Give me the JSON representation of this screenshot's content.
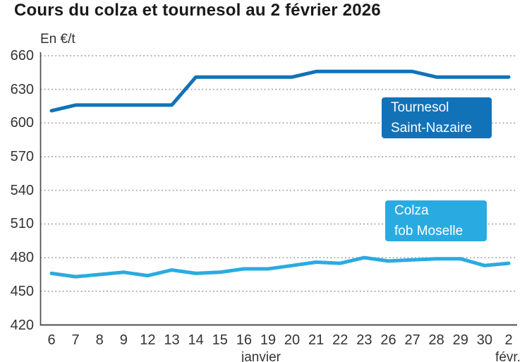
{
  "title": "Cours du colza et tournesol au 2 février 2026",
  "unit_label": "En €/t",
  "chart_data": {
    "type": "line",
    "title": "Cours du colza et tournesol au 2 février 2026",
    "ylabel": "En €/t",
    "xlabel": "",
    "ylim": [
      420,
      660
    ],
    "yticks": [
      420,
      450,
      480,
      510,
      540,
      570,
      600,
      630,
      660
    ],
    "grid": "dotted horizontal gridlines, solid left and bottom axes",
    "legend_position": "inline boxed labels inside plot area",
    "categories": [
      "6",
      "7",
      "8",
      "9",
      "12",
      "13",
      "14",
      "15",
      "16",
      "19",
      "20",
      "21",
      "22",
      "23",
      "26",
      "27",
      "28",
      "29",
      "30",
      "2"
    ],
    "month_labels": [
      {
        "label": "janvier"
      },
      {
        "label": "févr."
      }
    ],
    "series": [
      {
        "name": "Tournesol Saint-Nazaire",
        "label_lines": [
          "Tournesol",
          "Saint-Nazaire"
        ],
        "color": "#1272b8",
        "values": [
          611,
          616,
          616,
          616,
          616,
          616,
          641,
          641,
          641,
          641,
          641,
          646,
          646,
          646,
          646,
          646,
          641,
          641,
          641,
          641
        ]
      },
      {
        "name": "Colza fob Moselle",
        "label_lines": [
          "Colza",
          "fob Moselle"
        ],
        "color": "#29abe2",
        "values": [
          466,
          463,
          465,
          467,
          464,
          469,
          466,
          467,
          470,
          470,
          473,
          476,
          475,
          480,
          477,
          478,
          479,
          479,
          473,
          475
        ]
      }
    ],
    "axis_color": "#4d4d4d",
    "gridline_color": "#a8a8a8",
    "tick_label_color": "#333333"
  }
}
